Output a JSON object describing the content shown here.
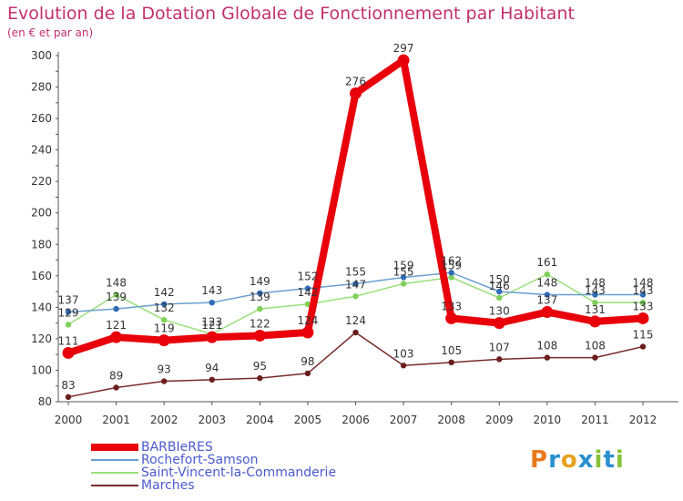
{
  "chart_data": {
    "type": "line",
    "title": "Evolution de la Dotation Globale de Fonctionnement par Habitant",
    "subtitle": "(en € et par an)",
    "xlabel": "",
    "ylabel": "",
    "ylim": [
      80,
      300
    ],
    "yticks": [
      "80",
      "100",
      "120",
      "140",
      "160",
      "180",
      "200",
      "220",
      "240",
      "260",
      "280",
      "300"
    ],
    "categories": [
      "2000",
      "2001",
      "2002",
      "2003",
      "2004",
      "2005",
      "2006",
      "2007",
      "2008",
      "2009",
      "2010",
      "2011",
      "2012"
    ],
    "grid": false,
    "legend_position": "bottom-left",
    "series": [
      {
        "name": "BARBIeRES",
        "color": "#e8000b",
        "values": [
          111,
          121,
          119,
          121,
          122,
          124,
          276,
          297,
          133,
          130,
          137,
          131,
          133
        ],
        "labels": [
          "111",
          "121",
          "119",
          "121",
          "122",
          "124",
          "276",
          "297",
          "133",
          "130",
          "137",
          "131",
          "133"
        ]
      },
      {
        "name": "Rochefort-Samson",
        "color": "#6b9fd0",
        "values": [
          137,
          139,
          142,
          143,
          149,
          152,
          155,
          159,
          162,
          150,
          148,
          148,
          148
        ],
        "labels": [
          "137",
          "139",
          "142",
          "143",
          "149",
          "152",
          "155",
          "159",
          "162",
          "150",
          "148",
          "148",
          "148"
        ]
      },
      {
        "name": "Saint-Vincent-la-Commanderie",
        "color": "#99e07a",
        "values": [
          129,
          148,
          132,
          123,
          139,
          142,
          147,
          155,
          159,
          146,
          161,
          143,
          143
        ],
        "labels": [
          "129",
          "148",
          "132",
          "123",
          "139",
          "142",
          "147",
          "155",
          "159",
          "146",
          "161",
          "143",
          "143"
        ]
      },
      {
        "name": "Marches",
        "color": "#7a2a2a",
        "values": [
          83,
          89,
          93,
          94,
          95,
          98,
          124,
          103,
          105,
          107,
          108,
          108,
          115
        ],
        "labels": [
          "83",
          "89",
          "93",
          "94",
          "95",
          "98",
          "124",
          "103",
          "105",
          "107",
          "108",
          "108",
          "115"
        ]
      }
    ]
  },
  "logo": {
    "letters": [
      "P",
      "r",
      "o",
      "x",
      "i",
      "t",
      "i"
    ],
    "colors": [
      "#e87a1e",
      "#2a8fd0",
      "#e8a21e",
      "#2a8fd0",
      "#88c23a",
      "#2a8fd0",
      "#88c23a"
    ]
  }
}
